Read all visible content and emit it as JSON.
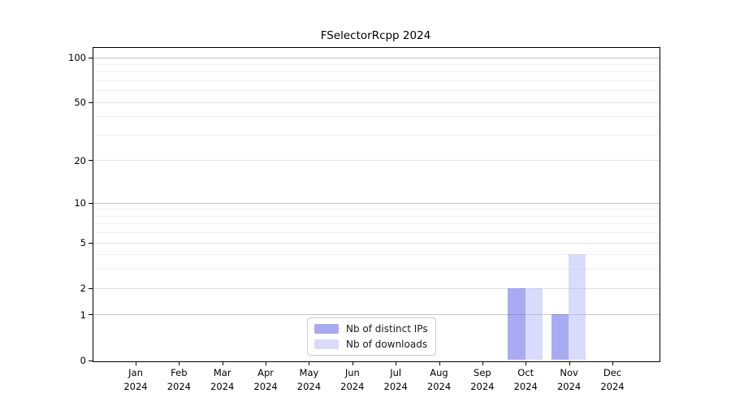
{
  "chart_data": {
    "type": "bar",
    "title": "FSelectorRcpp 2024",
    "categories": [
      "Jan",
      "Feb",
      "Mar",
      "Apr",
      "May",
      "Jun",
      "Jul",
      "Aug",
      "Sep",
      "Oct",
      "Nov",
      "Dec"
    ],
    "category_year": "2024",
    "series": [
      {
        "name": "Nb of distinct IPs",
        "color": "rgba(84,88,229,0.5)",
        "solid_color": "#a9abf1",
        "values": [
          0,
          0,
          0,
          0,
          0,
          0,
          0,
          0,
          0,
          2,
          1,
          0
        ]
      },
      {
        "name": "Nb of downloads",
        "color": "rgba(177,183,243,0.5)",
        "solid_color": "#d8dbf9",
        "values": [
          0,
          0,
          0,
          0,
          0,
          0,
          0,
          0,
          0,
          2,
          4,
          0
        ]
      }
    ],
    "y_scale": "log1p",
    "y_ticks": [
      0,
      1,
      2,
      5,
      10,
      20,
      50,
      100
    ],
    "y_minor_gridlines": [
      3,
      4,
      6,
      7,
      8,
      9,
      30,
      40,
      60,
      70,
      80,
      90
    ],
    "ylim": [
      0,
      113
    ],
    "grid": true,
    "legend_position": "inside-bottom-center"
  },
  "colors": {
    "background": "#ffffff",
    "axis": "#000000",
    "grid_major": "#c3c3c3",
    "grid_mid": "#e1e1e1",
    "grid_minor": "#efefef",
    "legend_border": "#cccccc"
  }
}
